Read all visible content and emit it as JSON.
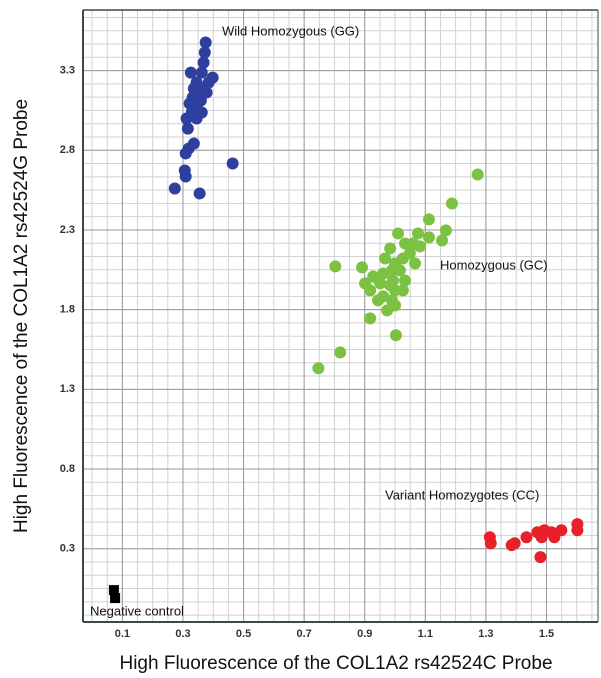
{
  "chart_data": {
    "type": "scatter",
    "xlabel": "High Fluorescence of the COL1A2 rs42524C Probe",
    "ylabel": "High Fluorescence of the COL1A2 rs42524G Probe",
    "xlim": [
      -0.03,
      1.67
    ],
    "ylim": [
      -0.16,
      3.68
    ],
    "xticks": [
      0.1,
      0.3,
      0.5,
      0.7,
      0.9,
      1.1,
      1.3,
      1.5
    ],
    "yticks": [
      0.3,
      0.8,
      1.3,
      1.8,
      2.3,
      2.8,
      3.3
    ],
    "grid": true,
    "series": [
      {
        "name": "Wild Homozygous (GG)",
        "color": "#2f3f9e",
        "marker": "circle",
        "x": [
          0.375,
          0.372,
          0.368,
          0.326,
          0.362,
          0.398,
          0.345,
          0.385,
          0.336,
          0.362,
          0.355,
          0.332,
          0.378,
          0.322,
          0.359,
          0.345,
          0.329,
          0.362,
          0.312,
          0.345,
          0.316,
          0.336,
          0.319,
          0.309,
          0.464,
          0.306,
          0.309,
          0.273,
          0.355
        ],
        "values": [
          3.476,
          3.413,
          3.35,
          3.287,
          3.287,
          3.256,
          3.225,
          3.225,
          3.187,
          3.187,
          3.162,
          3.131,
          3.162,
          3.093,
          3.112,
          3.062,
          3.037,
          3.037,
          2.999,
          2.999,
          2.936,
          2.842,
          2.811,
          2.78,
          2.717,
          2.673,
          2.635,
          2.56,
          2.529
        ]
      },
      {
        "name": "Homozygous (GC)",
        "color": "#7cc242",
        "marker": "circle",
        "x": [
          1.273,
          1.188,
          1.112,
          1.168,
          1.076,
          1.01,
          1.112,
          1.033,
          1.059,
          1.082,
          0.984,
          1.049,
          1.026,
          0.967,
          1.0,
          0.803,
          0.891,
          0.99,
          1.016,
          0.961,
          0.928,
          0.993,
          1.033,
          0.901,
          0.951,
          0.984,
          0.918,
          1.0,
          0.961,
          0.944,
          0.99,
          1.0,
          0.974,
          0.918,
          1.003,
          0.819,
          0.747,
          1.155,
          1.066,
          1.026
        ],
        "values": [
          2.648,
          2.466,
          2.366,
          2.297,
          2.278,
          2.278,
          2.253,
          2.215,
          2.215,
          2.197,
          2.184,
          2.153,
          2.121,
          2.121,
          2.09,
          2.071,
          2.065,
          2.046,
          2.046,
          2.027,
          2.008,
          1.983,
          1.983,
          1.965,
          1.965,
          1.952,
          1.921,
          1.921,
          1.883,
          1.858,
          1.858,
          1.827,
          1.795,
          1.745,
          1.639,
          1.532,
          1.432,
          2.234,
          2.09,
          1.921
        ]
      },
      {
        "name": "Variant Homozygotes (CC)",
        "color": "#e8202a",
        "marker": "circle",
        "x": [
          1.602,
          1.602,
          1.549,
          1.493,
          1.47,
          1.516,
          1.434,
          1.526,
          1.313,
          1.316,
          1.385,
          1.484,
          1.395,
          1.48
        ],
        "values": [
          0.454,
          0.416,
          0.416,
          0.416,
          0.403,
          0.403,
          0.372,
          0.372,
          0.372,
          0.334,
          0.322,
          0.372,
          0.334,
          0.247
        ]
      },
      {
        "name": "Negative control",
        "color": "#000000",
        "marker": "square",
        "x": [
          0.072,
          0.076
        ],
        "values": [
          0.04,
          -0.01
        ]
      }
    ]
  }
}
